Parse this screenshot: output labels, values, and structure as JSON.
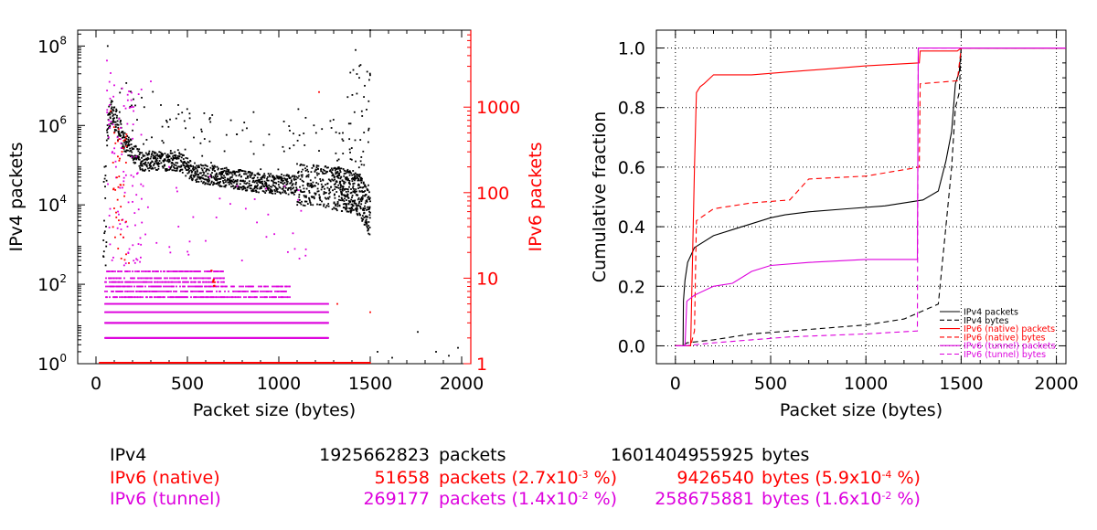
{
  "colors": {
    "ipv4": "#000000",
    "native": "#ff0000",
    "tunnel": "#dd00dd",
    "grid": "#000000"
  },
  "chart_data": [
    {
      "type": "scatter",
      "xlabel": "Packet size (bytes)",
      "ylabel": "IPv4 packets",
      "y2label": "IPv6 packets",
      "xlim": [
        -100,
        2050
      ],
      "ylim_log10": [
        0,
        8.4
      ],
      "y2lim_log10": [
        0,
        3.9
      ],
      "y_scale": "log",
      "y2_scale": "log",
      "x_ticks": [
        "0",
        "500",
        "1000",
        "1500",
        "2000"
      ],
      "y_ticks": [
        {
          "base": "10",
          "exp": "0"
        },
        {
          "base": "10",
          "exp": "2"
        },
        {
          "base": "10",
          "exp": "4"
        },
        {
          "base": "10",
          "exp": "6"
        },
        {
          "base": "10",
          "exp": "8"
        }
      ],
      "y2_ticks": [
        "1",
        "10",
        "100",
        "1000"
      ],
      "series": [
        {
          "name": "IPv4",
          "axis": "left",
          "color": "#000000",
          "curve": [
            [
              40,
              2.6
            ],
            [
              60,
              5.8
            ],
            [
              80,
              6.4
            ],
            [
              100,
              6.2
            ],
            [
              150,
              5.6
            ],
            [
              250,
              5.1
            ],
            [
              350,
              5.1
            ],
            [
              450,
              5.1
            ],
            [
              550,
              4.8
            ],
            [
              700,
              4.7
            ],
            [
              900,
              4.55
            ],
            [
              1100,
              4.5
            ],
            [
              1250,
              4.45
            ],
            [
              1400,
              4.35
            ],
            [
              1450,
              4.2
            ],
            [
              1490,
              3.8
            ]
          ],
          "spikes": [
            [
              64,
              8.0
            ],
            [
              250,
              6.7
            ],
            [
              512,
              6.3
            ],
            [
              576,
              5.9
            ],
            [
              1028,
              6.1
            ],
            [
              1420,
              7.9
            ],
            [
              1440,
              7.2
            ],
            [
              1470,
              7.0
            ],
            [
              1480,
              6.4
            ],
            [
              1500,
              8.4
            ]
          ],
          "outliers": [
            [
              1540,
              0.3
            ],
            [
              1620,
              0.15
            ],
            [
              1760,
              0.8
            ],
            [
              1860,
              0.3
            ],
            [
              1930,
              0.2
            ],
            [
              1980,
              0.4
            ]
          ]
        },
        {
          "name": "IPv6 (native)",
          "axis": "right",
          "color": "#ff0000",
          "points": [
            [
              80,
              900
            ],
            [
              100,
              500
            ],
            [
              120,
              400
            ],
            [
              130,
              250
            ],
            [
              150,
              30
            ],
            [
              180,
              15
            ],
            [
              640,
              9
            ],
            [
              1220,
              1500
            ],
            [
              1320,
              5
            ],
            [
              1500,
              4
            ]
          ],
          "floor_range": [
            20,
            1500
          ]
        },
        {
          "name": "IPv6 (tunnel)",
          "axis": "right",
          "color": "#dd00dd",
          "points": [
            [
              60,
              3500
            ],
            [
              80,
              2500
            ],
            [
              100,
              1800
            ],
            [
              70,
              700
            ],
            [
              90,
              300
            ],
            [
              110,
              150
            ],
            [
              120,
              60
            ],
            [
              150,
              30
            ],
            [
              300,
              2000
            ],
            [
              200,
              120
            ],
            [
              400,
              200
            ]
          ],
          "levels_range": [
            50,
            1270
          ]
        }
      ]
    },
    {
      "type": "line",
      "xlabel": "Packet size (bytes)",
      "ylabel": "Cumulative fraction",
      "xlim": [
        -100,
        2050
      ],
      "ylim": [
        -0.06,
        1.06
      ],
      "grid": true,
      "legend_position": "bottom-right",
      "x_ticks": [
        "0",
        "500",
        "1000",
        "1500",
        "2000"
      ],
      "y_ticks": [
        "0.0",
        "0.2",
        "0.4",
        "0.6",
        "0.8",
        "1.0"
      ],
      "series": [
        {
          "name": "IPv4 packets",
          "color": "#000000",
          "dash": "solid",
          "points": [
            [
              0,
              0
            ],
            [
              40,
              0
            ],
            [
              42,
              0.15
            ],
            [
              50,
              0.22
            ],
            [
              64,
              0.28
            ],
            [
              100,
              0.33
            ],
            [
              200,
              0.37
            ],
            [
              300,
              0.39
            ],
            [
              400,
              0.41
            ],
            [
              500,
              0.43
            ],
            [
              576,
              0.44
            ],
            [
              700,
              0.45
            ],
            [
              900,
              0.46
            ],
            [
              1100,
              0.47
            ],
            [
              1300,
              0.49
            ],
            [
              1380,
              0.52
            ],
            [
              1420,
              0.62
            ],
            [
              1450,
              0.72
            ],
            [
              1470,
              0.88
            ],
            [
              1490,
              0.92
            ],
            [
              1500,
              1.0
            ],
            [
              2060,
              1.0
            ]
          ]
        },
        {
          "name": "IPv4 bytes",
          "color": "#000000",
          "dash": "dashed",
          "points": [
            [
              0,
              0
            ],
            [
              40,
              0
            ],
            [
              60,
              0.01
            ],
            [
              200,
              0.02
            ],
            [
              400,
              0.04
            ],
            [
              600,
              0.05
            ],
            [
              800,
              0.06
            ],
            [
              1000,
              0.07
            ],
            [
              1200,
              0.09
            ],
            [
              1380,
              0.14
            ],
            [
              1420,
              0.4
            ],
            [
              1450,
              0.6
            ],
            [
              1470,
              0.8
            ],
            [
              1490,
              0.85
            ],
            [
              1500,
              1.0
            ],
            [
              2060,
              1.0
            ]
          ]
        },
        {
          "name": "IPv6 (native) packets",
          "color": "#ff0000",
          "dash": "solid",
          "points": [
            [
              0,
              0
            ],
            [
              80,
              0
            ],
            [
              100,
              0.6
            ],
            [
              110,
              0.85
            ],
            [
              130,
              0.87
            ],
            [
              150,
              0.88
            ],
            [
              200,
              0.91
            ],
            [
              400,
              0.91
            ],
            [
              600,
              0.92
            ],
            [
              800,
              0.93
            ],
            [
              1000,
              0.94
            ],
            [
              1280,
              0.95
            ],
            [
              1285,
              0.99
            ],
            [
              1480,
              0.99
            ],
            [
              1500,
              1.0
            ],
            [
              2060,
              1.0
            ]
          ]
        },
        {
          "name": "IPv6 (native) bytes",
          "color": "#ff0000",
          "dash": "dashed",
          "points": [
            [
              0,
              0
            ],
            [
              80,
              0
            ],
            [
              100,
              0.05
            ],
            [
              110,
              0.42
            ],
            [
              200,
              0.46
            ],
            [
              400,
              0.48
            ],
            [
              600,
              0.49
            ],
            [
              700,
              0.56
            ],
            [
              1000,
              0.57
            ],
            [
              1280,
              0.6
            ],
            [
              1285,
              0.88
            ],
            [
              1480,
              0.89
            ],
            [
              1500,
              1.0
            ],
            [
              2060,
              1.0
            ]
          ]
        },
        {
          "name": "IPv6 (tunnel) packets",
          "color": "#dd00dd",
          "dash": "solid",
          "points": [
            [
              0,
              0
            ],
            [
              50,
              0
            ],
            [
              60,
              0.15
            ],
            [
              100,
              0.17
            ],
            [
              200,
              0.2
            ],
            [
              300,
              0.21
            ],
            [
              400,
              0.25
            ],
            [
              500,
              0.27
            ],
            [
              700,
              0.28
            ],
            [
              1000,
              0.29
            ],
            [
              1270,
              0.29
            ],
            [
              1275,
              1.0
            ],
            [
              2060,
              1.0
            ]
          ]
        },
        {
          "name": "IPv6 (tunnel) bytes",
          "color": "#dd00dd",
          "dash": "dashed",
          "points": [
            [
              0,
              0
            ],
            [
              50,
              0
            ],
            [
              200,
              0.01
            ],
            [
              400,
              0.02
            ],
            [
              600,
              0.03
            ],
            [
              800,
              0.035
            ],
            [
              1000,
              0.04
            ],
            [
              1270,
              0.05
            ],
            [
              1275,
              1.0
            ],
            [
              2060,
              1.0
            ]
          ]
        }
      ]
    }
  ],
  "stats": [
    {
      "name": "IPv4",
      "color": "#000000",
      "packets": "1925662823",
      "packets_label": "packets",
      "packets_pct_mant": "",
      "packets_pct_exp": "",
      "packets_pct_tail": "",
      "bytes": "1601404955925",
      "bytes_label": "bytes",
      "bytes_pct_mant": "",
      "bytes_pct_exp": "",
      "bytes_pct_tail": ""
    },
    {
      "name": "IPv6 (native)",
      "color": "#ff0000",
      "packets": "51658",
      "packets_label": "packets (2.7x10",
      "packets_pct_mant": "",
      "packets_pct_exp": "-3",
      "packets_pct_tail": " %)",
      "bytes": "9426540",
      "bytes_label": "bytes (5.9x10",
      "bytes_pct_mant": "",
      "bytes_pct_exp": "-4",
      "bytes_pct_tail": " %)"
    },
    {
      "name": "IPv6 (tunnel)",
      "color": "#dd00dd",
      "packets": "269177",
      "packets_label": "packets (1.4x10",
      "packets_pct_mant": "",
      "packets_pct_exp": "-2",
      "packets_pct_tail": " %)",
      "bytes": "258675881",
      "bytes_label": "bytes (1.6x10",
      "bytes_pct_mant": "",
      "bytes_pct_exp": "-2",
      "bytes_pct_tail": " %)"
    }
  ]
}
